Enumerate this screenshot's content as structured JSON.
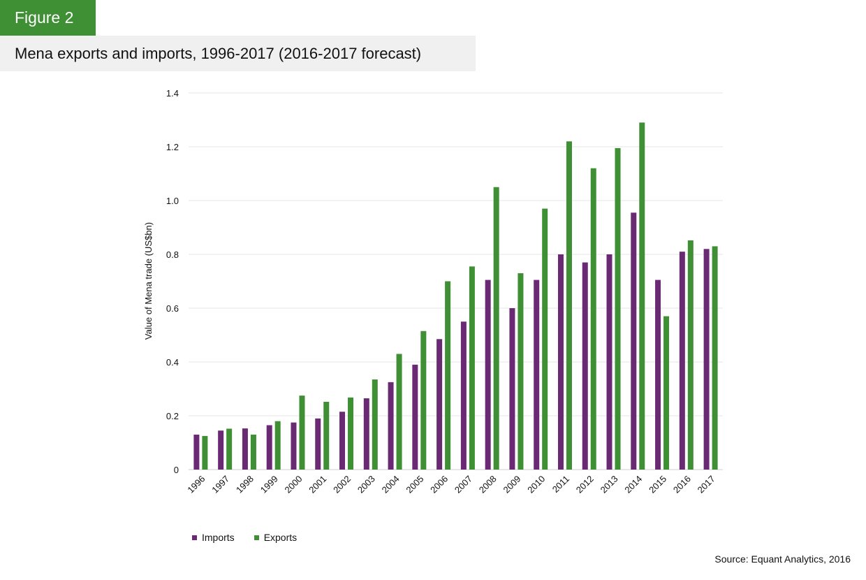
{
  "figure_label": "Figure 2",
  "title": "Mena exports and imports, 1996-2017 (2016-2017 forecast)",
  "source": "Source: Equant Analytics, 2016",
  "colors": {
    "imports": "#6a2a73",
    "exports": "#3f8f35",
    "badge": "#3f8f35",
    "title_band": "#f0f0f0",
    "grid": "#e6e6e6"
  },
  "chart_data": {
    "type": "bar",
    "title": "Mena exports and imports, 1996-2017 (2016-2017 forecast)",
    "xlabel": "",
    "ylabel": "Value of Mena trade (US$bn)",
    "ylim": [
      0,
      1.4
    ],
    "yticks": [
      0,
      0.2,
      0.4,
      0.6,
      0.8,
      1.0,
      1.2,
      1.4
    ],
    "ytick_labels": [
      "0",
      "0.2",
      "0.4",
      "0.6",
      "0.8",
      "1.0",
      "1.2",
      "1.4"
    ],
    "grid": true,
    "legend_position": "bottom-left",
    "categories": [
      "1996",
      "1997",
      "1998",
      "1999",
      "2000",
      "2001",
      "2002",
      "2003",
      "2004",
      "2005",
      "2006",
      "2007",
      "2008",
      "2009",
      "2010",
      "2011",
      "2012",
      "2013",
      "2014",
      "2015",
      "2016",
      "2017"
    ],
    "series": [
      {
        "name": "Imports",
        "color": "#6a2a73",
        "values": [
          0.13,
          0.145,
          0.153,
          0.165,
          0.175,
          0.19,
          0.215,
          0.265,
          0.325,
          0.39,
          0.485,
          0.55,
          0.705,
          0.6,
          0.705,
          0.8,
          0.77,
          0.8,
          0.955,
          0.705,
          0.81,
          0.82
        ]
      },
      {
        "name": "Exports",
        "color": "#3f8f35",
        "values": [
          0.125,
          0.152,
          0.13,
          0.18,
          0.275,
          0.252,
          0.268,
          0.335,
          0.43,
          0.515,
          0.7,
          0.755,
          1.05,
          0.73,
          0.97,
          1.22,
          1.12,
          1.195,
          1.29,
          0.57,
          0.852,
          0.83
        ]
      }
    ]
  }
}
